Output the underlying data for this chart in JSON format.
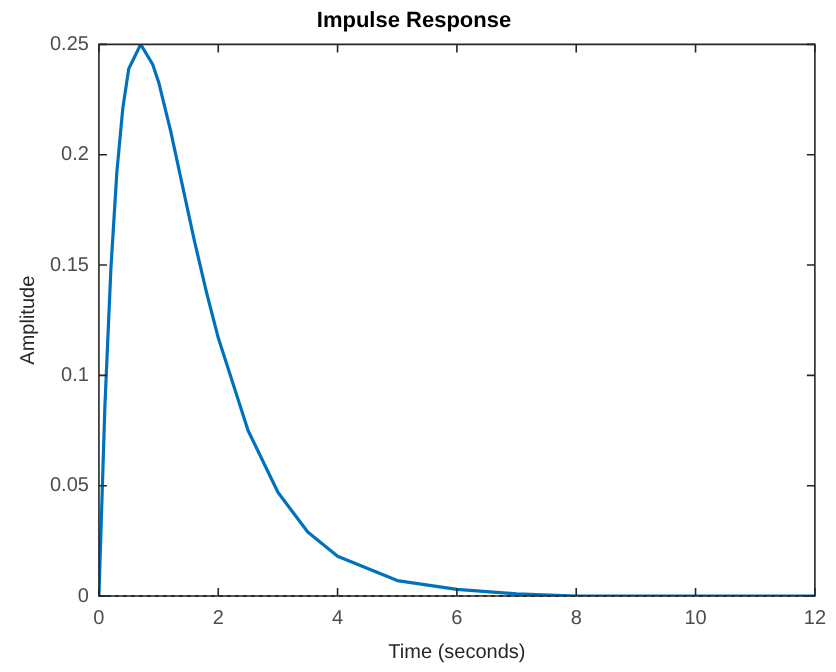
{
  "chart_data": {
    "type": "line",
    "title": "Impulse Response",
    "xlabel": "Time (seconds)",
    "ylabel": "Amplitude",
    "x": [
      0,
      0.1,
      0.2,
      0.3,
      0.4,
      0.5,
      0.7,
      0.9,
      1,
      1.2,
      1.4,
      1.6,
      1.8,
      2,
      2.5,
      3,
      3.5,
      4,
      5,
      6,
      7,
      8,
      10,
      12
    ],
    "series": [
      {
        "color": "#0072bd",
        "values": [
          0,
          0.086,
          0.148,
          0.192,
          0.221,
          0.239,
          0.25,
          0.241,
          0.233,
          0.211,
          0.186,
          0.161,
          0.138,
          0.117,
          0.075,
          0.047,
          0.029,
          0.018,
          0.007,
          0.003,
          0.001,
          0,
          0,
          0
        ]
      }
    ],
    "xlim": [
      0,
      12
    ],
    "xticks": [
      0,
      2,
      4,
      6,
      8,
      10,
      12
    ],
    "ylim": [
      0,
      0.25
    ],
    "yticks": [
      0,
      0.05,
      0.1,
      0.15,
      0.2,
      0.25
    ],
    "ref_lines": [
      {
        "axis": "y",
        "value": 0,
        "color": "#444444",
        "line_style": "dotted"
      }
    ],
    "grid": false,
    "legend": false,
    "marker": "none",
    "line_style": "solid"
  }
}
